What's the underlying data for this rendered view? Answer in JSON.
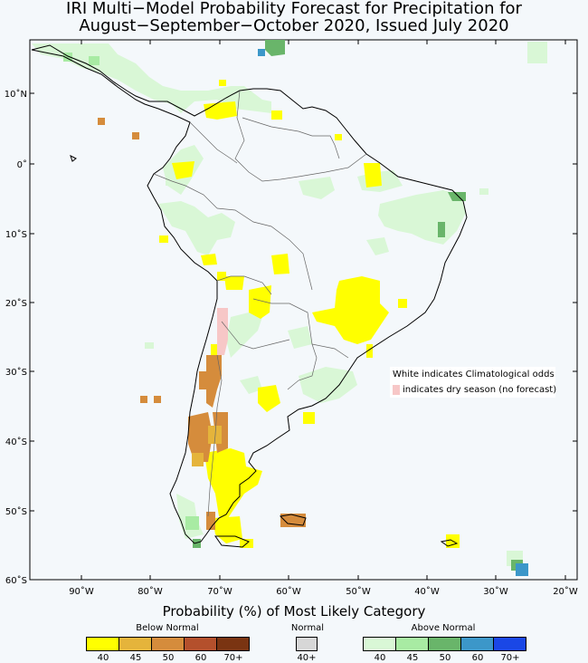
{
  "title_line1": "IRI Multi−Model Probability Forecast for Precipitation for",
  "title_line2": "August−September−October 2020, Issued July 2020",
  "map": {
    "lat_labels": [
      "10˚N",
      "0˚",
      "10˚S",
      "20˚S",
      "30˚S",
      "40˚S",
      "50˚S",
      "60˚S"
    ],
    "lon_labels": [
      "90˚W",
      "80˚W",
      "70˚W",
      "60˚W",
      "50˚W",
      "40˚W",
      "30˚W",
      "20˚W"
    ],
    "legend_line1": "White indicates Climatological odds",
    "legend_line2": "indicates dry season (no forecast)"
  },
  "colorbar": {
    "title": "Probability (%) of Most Likely Category",
    "below_normal": {
      "label": "Below Normal",
      "ticks": [
        "40",
        "45",
        "50",
        "60",
        "70+"
      ],
      "colors": [
        "#ffff00",
        "#e5b43b",
        "#d58c3c",
        "#b4502c",
        "#7a3412"
      ]
    },
    "normal": {
      "label": "Normal",
      "ticks": [
        "40+"
      ],
      "colors": [
        "#d7d7d7"
      ]
    },
    "above_normal": {
      "label": "Above Normal",
      "ticks": [
        "40",
        "45",
        "50",
        "60",
        "70+"
      ],
      "colors": [
        "#d9f7d6",
        "#a8eba3",
        "#69b56a",
        "#3c97c9",
        "#1a47e6"
      ]
    },
    "dry_color": "#f7c7c7"
  }
}
